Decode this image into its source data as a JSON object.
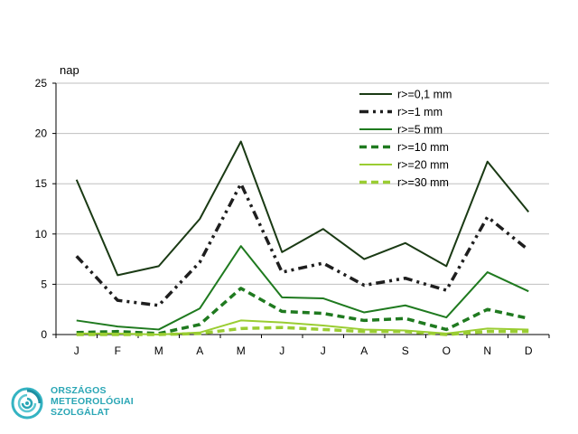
{
  "chart_data": {
    "type": "line",
    "ylabel": "nap",
    "ylim": [
      0,
      25
    ],
    "yticks": [
      0,
      5,
      10,
      15,
      20,
      25
    ],
    "categories": [
      "J",
      "F",
      "M",
      "A",
      "M",
      "J",
      "J",
      "A",
      "S",
      "O",
      "N",
      "D"
    ],
    "grid": "horizontal",
    "legend_position": "top-right",
    "series": [
      {
        "name": "r>=0,1 mm",
        "color": "#1a3a14",
        "style": "solid",
        "width": 2,
        "values": [
          15.4,
          5.9,
          6.8,
          11.5,
          19.2,
          8.2,
          10.5,
          7.5,
          9.1,
          6.8,
          17.2,
          12.2
        ]
      },
      {
        "name": "r>=1 mm",
        "color": "#1e1e1e",
        "style": "dashdotdot",
        "width": 3.5,
        "values": [
          7.8,
          3.4,
          2.9,
          7.2,
          15.0,
          6.2,
          7.1,
          4.9,
          5.6,
          4.4,
          11.7,
          8.4
        ]
      },
      {
        "name": "r>=5 mm",
        "color": "#1f7a1f",
        "style": "solid",
        "width": 2,
        "values": [
          1.4,
          0.8,
          0.5,
          2.6,
          8.8,
          3.7,
          3.6,
          2.2,
          2.9,
          1.7,
          6.2,
          4.3
        ]
      },
      {
        "name": "r>=10 mm",
        "color": "#1f7a1f",
        "style": "dashed",
        "width": 3.5,
        "values": [
          0.2,
          0.3,
          0.1,
          1.0,
          4.6,
          2.3,
          2.1,
          1.4,
          1.6,
          0.5,
          2.5,
          1.6
        ]
      },
      {
        "name": "r>=20 mm",
        "color": "#9acd32",
        "style": "solid",
        "width": 2,
        "values": [
          0.1,
          0.1,
          0.0,
          0.2,
          1.4,
          1.2,
          0.9,
          0.5,
          0.4,
          0.1,
          0.6,
          0.5
        ]
      },
      {
        "name": "r>=30 mm",
        "color": "#9acd32",
        "style": "dashed",
        "width": 3.5,
        "values": [
          0.0,
          0.0,
          0.0,
          0.1,
          0.6,
          0.7,
          0.5,
          0.3,
          0.3,
          0.0,
          0.3,
          0.3
        ]
      }
    ]
  },
  "logo": {
    "line1": "ORSZÁGOS",
    "line2": "METEOROLÓGIAI",
    "line3": "SZOLGÁLAT"
  }
}
